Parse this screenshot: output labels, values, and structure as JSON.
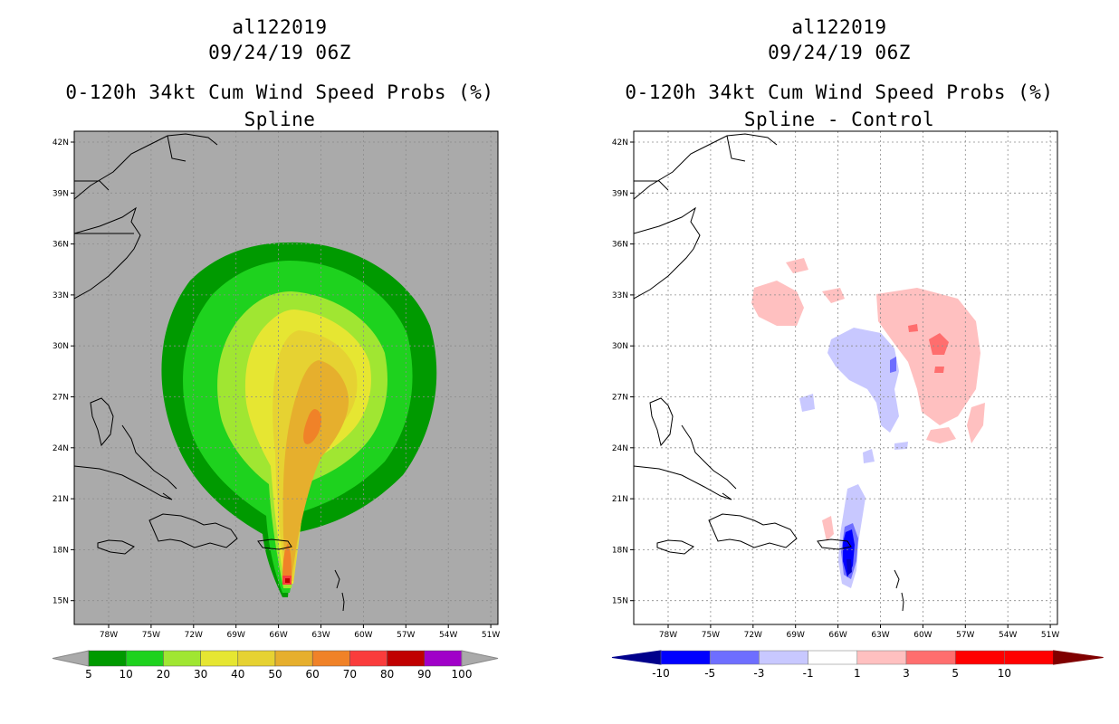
{
  "colors": {
    "land_left": "#aaaaaa",
    "ocean_right": "#ffffff",
    "coast": "#000000",
    "grid": "#8c8c8c"
  },
  "panels": [
    {
      "storm_id": "al122019",
      "datetime": "09/24/19 06Z",
      "product": "0-120h 34kt Cum Wind Speed Probs (%)",
      "subtitle": "Spline",
      "legend": {
        "labels": [
          "5",
          "10",
          "20",
          "30",
          "40",
          "50",
          "60",
          "70",
          "80",
          "90",
          "100"
        ],
        "colors": [
          "#009a00",
          "#1ed21e",
          "#a0e632",
          "#e6e632",
          "#e6d232",
          "#e6af2d",
          "#f08228",
          "#fa3c3c",
          "#c00000",
          "#a000c8"
        ]
      }
    },
    {
      "storm_id": "al122019",
      "datetime": "09/24/19 06Z",
      "product": "0-120h 34kt Cum Wind Speed Probs (%)",
      "subtitle": "Spline - Control",
      "legend": {
        "labels": [
          "-10",
          "-5",
          "-3",
          "-1",
          "1",
          "3",
          "5",
          "10"
        ],
        "colors": [
          "#0000c8",
          "#0000ff",
          "#6e6eff",
          "#c8c8ff",
          "#ffffff",
          "#ffc0c0",
          "#ff6e6e",
          "#ff0000",
          "#ff0000"
        ]
      }
    }
  ],
  "map": {
    "lat_labels": [
      "42N",
      "39N",
      "36N",
      "33N",
      "30N",
      "27N",
      "24N",
      "21N",
      "18N",
      "15N"
    ],
    "lon_labels": [
      "78W",
      "75W",
      "72W",
      "69W",
      "66W",
      "63W",
      "60W",
      "57W",
      "54W",
      "51W"
    ]
  }
}
